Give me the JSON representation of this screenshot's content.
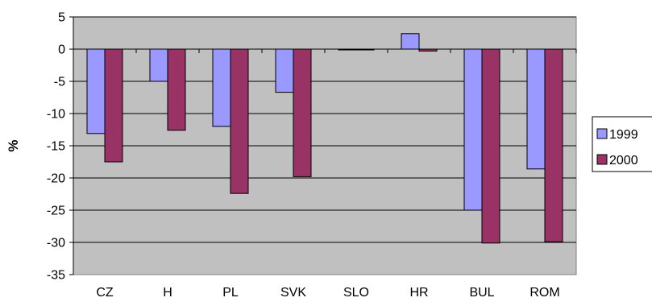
{
  "chart_data": {
    "type": "bar",
    "title": "",
    "xlabel": "",
    "ylabel": "%",
    "categories": [
      "CZ",
      "H",
      "PL",
      "SVK",
      "SLO",
      "HR",
      "BUL",
      "ROM"
    ],
    "series": [
      {
        "name": "1999",
        "color": "#9999ff",
        "values": [
          -13.1,
          -5.0,
          -12.0,
          -6.7,
          0.0,
          2.4,
          -25.0,
          -18.6
        ]
      },
      {
        "name": "2000",
        "color": "#993366",
        "values": [
          -17.5,
          -12.6,
          -22.4,
          -19.8,
          -0.1,
          -0.3,
          -30.1,
          -29.9
        ]
      }
    ],
    "ylim": [
      -35,
      5
    ],
    "yticks": [
      5,
      0,
      -5,
      -10,
      -15,
      -20,
      -25,
      -30,
      -35
    ],
    "grid": true,
    "legend_position": "right",
    "plot_background": "#c0c0c0"
  }
}
